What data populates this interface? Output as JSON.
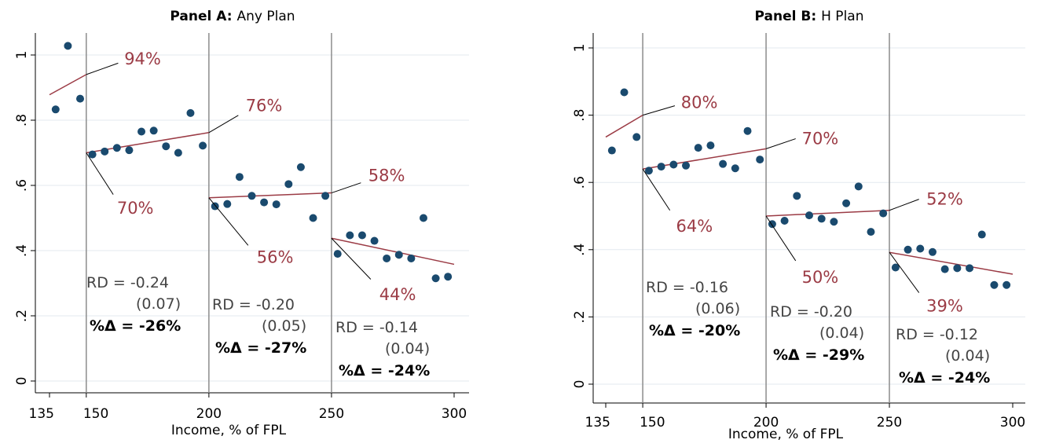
{
  "chart_data": [
    {
      "type": "scatter",
      "title": "Panel A:",
      "subtitle": "Any Plan",
      "xlabel": "Income, % of FPL",
      "ylabel": "",
      "xlim": [
        135,
        300
      ],
      "ylim": [
        0,
        1.03
      ],
      "xticks": [
        135,
        150,
        200,
        250,
        300
      ],
      "yticks": [
        0,
        0.2,
        0.4,
        0.6,
        0.8,
        1
      ],
      "ytick_labels": [
        "0",
        ".2",
        ".4",
        ".6",
        ".8",
        "1"
      ],
      "grid": true,
      "cutoffs": [
        150,
        200,
        250
      ],
      "points": {
        "x": [
          137.5,
          142.5,
          147.5,
          152.5,
          157.5,
          162.5,
          167.5,
          172.5,
          177.5,
          182.5,
          187.5,
          192.5,
          197.5,
          202.5,
          207.5,
          212.5,
          217.5,
          222.5,
          227.5,
          232.5,
          237.5,
          242.5,
          247.5,
          252.5,
          257.5,
          262.5,
          267.5,
          272.5,
          277.5,
          282.5,
          287.5,
          292.5,
          297.5
        ],
        "y": [
          0.833,
          1.028,
          0.866,
          0.695,
          0.704,
          0.715,
          0.708,
          0.765,
          0.768,
          0.72,
          0.7,
          0.822,
          0.722,
          0.536,
          0.543,
          0.626,
          0.568,
          0.548,
          0.542,
          0.604,
          0.656,
          0.5,
          0.568,
          0.39,
          0.447,
          0.447,
          0.43,
          0.376,
          0.387,
          0.376,
          0.5,
          0.315,
          0.32
        ]
      },
      "fit_segments": [
        {
          "x": [
            135,
            150
          ],
          "y": [
            0.878,
            0.94
          ]
        },
        {
          "x": [
            150,
            200
          ],
          "y": [
            0.7,
            0.762
          ]
        },
        {
          "x": [
            200,
            250
          ],
          "y": [
            0.562,
            0.577
          ]
        },
        {
          "x": [
            250,
            300
          ],
          "y": [
            0.438,
            0.358
          ]
        }
      ],
      "annotations": [
        {
          "text": "94%",
          "x": 165.5,
          "y": 0.988,
          "line": [
            [
              150,
              0.94
            ],
            [
              163,
              0.975
            ]
          ]
        },
        {
          "text": "70%",
          "x": 162.5,
          "y": 0.53,
          "line": [
            [
              150,
              0.7
            ],
            [
              161,
              0.572
            ]
          ]
        },
        {
          "text": "76%",
          "x": 215,
          "y": 0.845,
          "line": [
            [
              200,
              0.762
            ],
            [
              212,
              0.815
            ]
          ]
        },
        {
          "text": "56%",
          "x": 219.5,
          "y": 0.38,
          "line": [
            [
              200,
              0.562
            ],
            [
              216,
              0.416
            ]
          ]
        },
        {
          "text": "58%",
          "x": 265,
          "y": 0.63,
          "line": [
            [
              250,
              0.577
            ],
            [
              262,
              0.608
            ]
          ]
        },
        {
          "text": "44%",
          "x": 269.5,
          "y": 0.265,
          "line": [
            [
              250,
              0.438
            ],
            [
              266,
              0.312
            ]
          ]
        }
      ],
      "rd_boxes": [
        {
          "rd": "RD = -0.24",
          "se": "(0.07)",
          "pct": "%Δ = -26%"
        },
        {
          "rd": "RD = -0.20",
          "se": "(0.05)",
          "pct": "%Δ = -27%"
        },
        {
          "rd": "RD = -0.14",
          "se": "(0.04)",
          "pct": "%Δ = -24%"
        }
      ]
    },
    {
      "type": "scatter",
      "title": "Panel B:",
      "subtitle": "H Plan",
      "xlabel": "Income, % of FPL",
      "ylabel": "",
      "xlim": [
        135,
        300
      ],
      "ylim": [
        0,
        1.0
      ],
      "xticks": [
        135,
        150,
        200,
        250,
        300
      ],
      "yticks": [
        0,
        0.2,
        0.4,
        0.6,
        0.8,
        1
      ],
      "ytick_labels": [
        "0",
        ".2",
        ".4",
        ".6",
        ".8",
        "1"
      ],
      "grid": true,
      "cutoffs": [
        150,
        200,
        250
      ],
      "points": {
        "x": [
          137.5,
          142.5,
          147.5,
          152.5,
          157.5,
          162.5,
          167.5,
          172.5,
          177.5,
          182.5,
          187.5,
          192.5,
          197.5,
          202.5,
          207.5,
          212.5,
          217.5,
          222.5,
          227.5,
          232.5,
          237.5,
          242.5,
          247.5,
          252.5,
          257.5,
          262.5,
          267.5,
          272.5,
          277.5,
          282.5,
          287.5,
          292.5,
          297.5
        ],
        "y": [
          0.695,
          0.868,
          0.735,
          0.635,
          0.647,
          0.653,
          0.65,
          0.703,
          0.71,
          0.655,
          0.642,
          0.753,
          0.668,
          0.476,
          0.486,
          0.56,
          0.502,
          0.492,
          0.483,
          0.538,
          0.588,
          0.453,
          0.508,
          0.347,
          0.4,
          0.403,
          0.393,
          0.342,
          0.345,
          0.345,
          0.445,
          0.295,
          0.295
        ]
      },
      "fit_segments": [
        {
          "x": [
            135,
            150
          ],
          "y": [
            0.735,
            0.8
          ]
        },
        {
          "x": [
            150,
            200
          ],
          "y": [
            0.64,
            0.7
          ]
        },
        {
          "x": [
            200,
            250
          ],
          "y": [
            0.5,
            0.517
          ]
        },
        {
          "x": [
            250,
            300
          ],
          "y": [
            0.392,
            0.327
          ]
        }
      ],
      "annotations": [
        {
          "text": "80%",
          "x": 165.5,
          "y": 0.838,
          "line": [
            [
              150,
              0.8
            ],
            [
              163,
              0.828
            ]
          ]
        },
        {
          "text": "64%",
          "x": 163.5,
          "y": 0.47,
          "line": [
            [
              150,
              0.64
            ],
            [
              161,
              0.517
            ]
          ]
        },
        {
          "text": "70%",
          "x": 214.5,
          "y": 0.73,
          "line": [
            [
              200,
              0.7
            ],
            [
              212,
              0.73
            ]
          ]
        },
        {
          "text": "50%",
          "x": 214.5,
          "y": 0.318,
          "line": [
            [
              200,
              0.5
            ],
            [
              212,
              0.367
            ]
          ]
        },
        {
          "text": "52%",
          "x": 265,
          "y": 0.55,
          "line": [
            [
              250,
              0.517
            ],
            [
              262,
              0.55
            ]
          ]
        },
        {
          "text": "39%",
          "x": 265,
          "y": 0.232,
          "line": [
            [
              250,
              0.392
            ],
            [
              262,
              0.272
            ]
          ]
        }
      ],
      "rd_boxes": [
        {
          "rd": "RD = -0.16",
          "se": "(0.06)",
          "pct": "%Δ = -20%"
        },
        {
          "rd": "RD = -0.20",
          "se": "(0.04)",
          "pct": "%Δ = -29%"
        },
        {
          "rd": "RD = -0.12",
          "se": "(0.04)",
          "pct": "%Δ = -24%"
        }
      ]
    }
  ],
  "colors": {
    "points": "#1a4a6e",
    "fit": "#9b3b45",
    "label": "#9b3b45",
    "cutoff": "#8c8c8c",
    "grid": "#e3e9ef"
  }
}
